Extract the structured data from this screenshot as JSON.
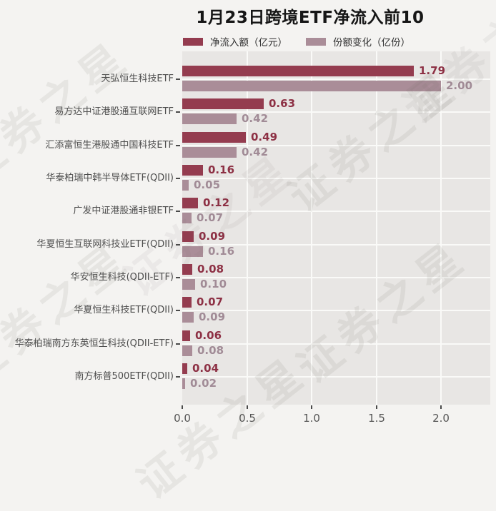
{
  "title": "1月23日跨境ETF净流入前10",
  "watermark": {
    "text": "证券之星"
  },
  "legend": {
    "items": [
      {
        "label": "净流入额（亿元）",
        "color": "#943c4f"
      },
      {
        "label": "份额变化（亿份）",
        "color": "#aa8d98"
      }
    ]
  },
  "chart_data": {
    "type": "bar",
    "orientation": "horizontal",
    "title": "1月23日跨境ETF净流入前10",
    "categories": [
      "天弘恒生科技ETF",
      "易方达中证港股通互联网ETF",
      "汇添富恒生港股通中国科技ETF",
      "华泰柏瑞中韩半导体ETF(QDII)",
      "广发中证港股通非银ETF",
      "华夏恒生互联网科技业ETF(QDII)",
      "华安恒生科技(QDII-ETF)",
      "华夏恒生科技ETF(QDII)",
      "华泰柏瑞南方东英恒生科技(QDII-ETF)",
      "南方标普500ETF(QDII)"
    ],
    "series": [
      {
        "name": "净流入额（亿元）",
        "color": "#943c4f",
        "label_color": "#8d3044",
        "values": [
          1.79,
          0.63,
          0.49,
          0.16,
          0.12,
          0.09,
          0.08,
          0.07,
          0.06,
          0.04
        ],
        "labels": [
          "1.79",
          "0.63",
          "0.49",
          "0.16",
          "0.12",
          "0.09",
          "0.08",
          "0.07",
          "0.06",
          "0.04"
        ]
      },
      {
        "name": "份额变化（亿份）",
        "color": "#aa8d98",
        "label_color": "#a18b96",
        "values": [
          2.0,
          0.42,
          0.42,
          0.05,
          0.07,
          0.16,
          0.1,
          0.09,
          0.08,
          0.02
        ],
        "labels": [
          "2.00",
          "0.42",
          "0.42",
          "0.05",
          "0.07",
          "0.16",
          "0.10",
          "0.09",
          "0.08",
          "0.02"
        ]
      }
    ],
    "x_axis": {
      "ticks": [
        "0.0",
        "0.5",
        "1.0",
        "1.5",
        "2.0"
      ],
      "min": 0.0,
      "max": 2.38
    },
    "grid": "white gridlines on light gray plot background",
    "legend_position": "top"
  }
}
